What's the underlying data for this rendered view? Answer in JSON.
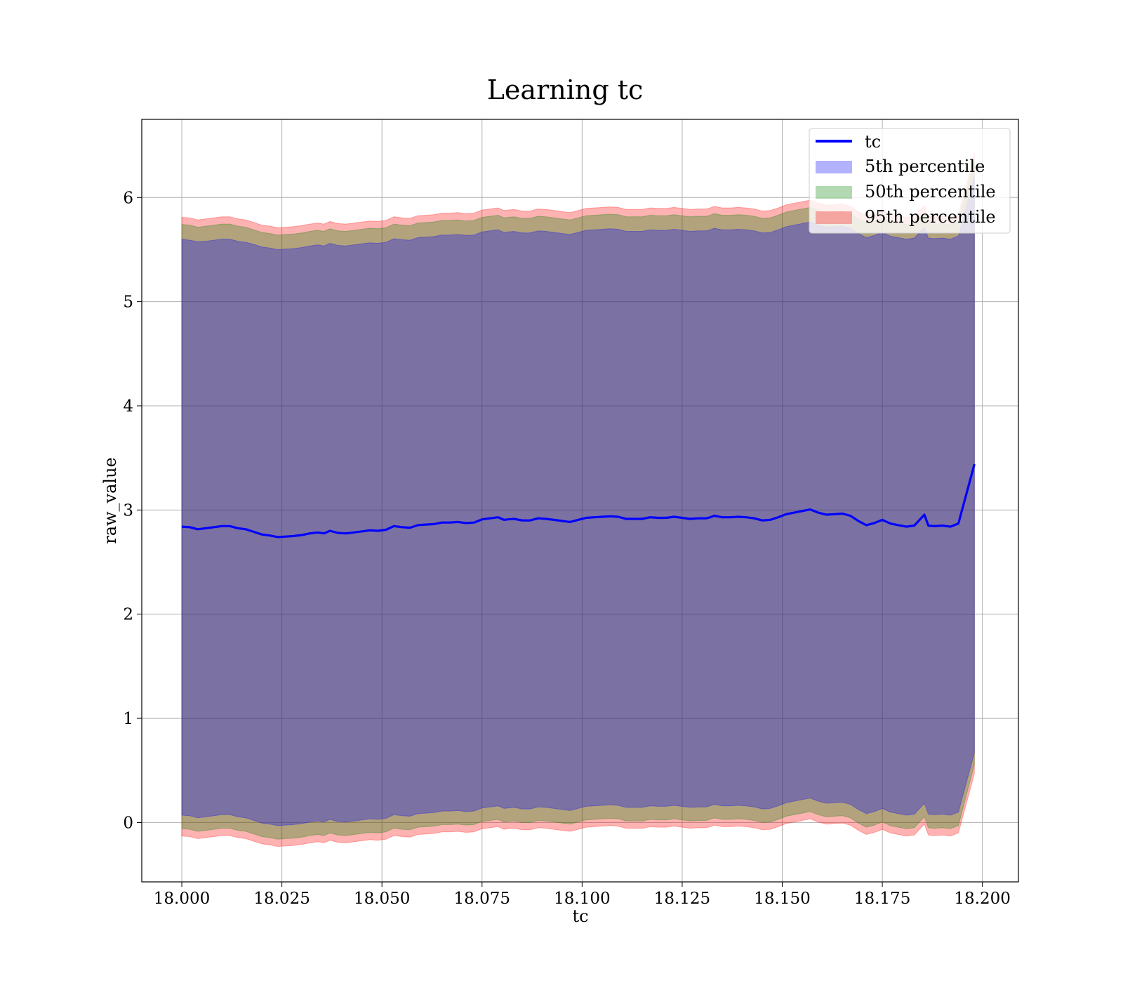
{
  "chart_data": {
    "type": "area",
    "title": "Learning tc",
    "xlabel": "tc",
    "ylabel": "raw_value",
    "xlim": [
      17.99,
      18.209
    ],
    "ylim": [
      -0.57,
      6.75
    ],
    "x_ticks": [
      18.0,
      18.025,
      18.05,
      18.075,
      18.1,
      18.125,
      18.15,
      18.175,
      18.2
    ],
    "x_tick_labels": [
      "18.000",
      "18.025",
      "18.050",
      "18.075",
      "18.100",
      "18.125",
      "18.150",
      "18.175",
      "18.200"
    ],
    "y_ticks": [
      0,
      1,
      2,
      3,
      4,
      5,
      6
    ],
    "y_tick_labels": [
      "0",
      "1",
      "2",
      "3",
      "4",
      "5",
      "6"
    ],
    "grid": true,
    "legend_position": "top-right",
    "x": [
      18.0,
      18.002,
      18.004,
      18.006,
      18.008,
      18.01,
      18.012,
      18.014,
      18.016,
      18.018,
      18.02,
      18.022,
      18.024,
      18.026,
      18.028,
      18.03,
      18.032,
      18.034,
      18.0355,
      18.037,
      18.039,
      18.041,
      18.043,
      18.045,
      18.047,
      18.049,
      18.051,
      18.053,
      18.055,
      18.057,
      18.059,
      18.061,
      18.063,
      18.065,
      18.067,
      18.069,
      18.071,
      18.073,
      18.075,
      18.077,
      18.079,
      18.0805,
      18.0815,
      18.083,
      18.085,
      18.087,
      18.089,
      18.091,
      18.093,
      18.095,
      18.097,
      18.099,
      18.101,
      18.103,
      18.105,
      18.107,
      18.109,
      18.111,
      18.113,
      18.115,
      18.117,
      18.119,
      18.121,
      18.123,
      18.125,
      18.127,
      18.129,
      18.131,
      18.132,
      18.133,
      18.135,
      18.137,
      18.139,
      18.141,
      18.143,
      18.145,
      18.147,
      18.149,
      18.151,
      18.153,
      18.155,
      18.157,
      18.159,
      18.161,
      18.163,
      18.165,
      18.167,
      18.169,
      18.171,
      18.173,
      18.175,
      18.177,
      18.179,
      18.181,
      18.183,
      18.1855,
      18.1865,
      18.188,
      18.19,
      18.192,
      18.194,
      18.198
    ],
    "series": [
      {
        "name": "tc",
        "color": "#0000ff",
        "values": [
          2.84,
          2.835,
          2.815,
          2.825,
          2.835,
          2.845,
          2.845,
          2.825,
          2.815,
          2.79,
          2.765,
          2.755,
          2.74,
          2.745,
          2.75,
          2.76,
          2.775,
          2.785,
          2.775,
          2.8,
          2.78,
          2.775,
          2.785,
          2.795,
          2.805,
          2.8,
          2.81,
          2.845,
          2.835,
          2.83,
          2.855,
          2.86,
          2.865,
          2.88,
          2.88,
          2.885,
          2.875,
          2.88,
          2.91,
          2.92,
          2.93,
          2.905,
          2.91,
          2.915,
          2.9,
          2.9,
          2.92,
          2.915,
          2.905,
          2.895,
          2.885,
          2.905,
          2.925,
          2.93,
          2.935,
          2.94,
          2.935,
          2.915,
          2.915,
          2.915,
          2.93,
          2.925,
          2.925,
          2.935,
          2.925,
          2.915,
          2.92,
          2.92,
          2.93,
          2.945,
          2.93,
          2.93,
          2.935,
          2.93,
          2.92,
          2.9,
          2.905,
          2.93,
          2.96,
          2.975,
          2.99,
          3.005,
          2.975,
          2.955,
          2.96,
          2.965,
          2.945,
          2.895,
          2.855,
          2.875,
          2.905,
          2.87,
          2.855,
          2.84,
          2.85,
          2.955,
          2.85,
          2.845,
          2.85,
          2.84,
          2.87,
          3.44
        ]
      },
      {
        "name": "5th percentile",
        "color": "#0000ff",
        "upper": [
          5.6,
          5.59,
          5.575,
          5.58,
          5.59,
          5.6,
          5.6,
          5.58,
          5.57,
          5.55,
          5.525,
          5.515,
          5.5,
          5.505,
          5.51,
          5.52,
          5.535,
          5.545,
          5.535,
          5.56,
          5.54,
          5.535,
          5.545,
          5.555,
          5.565,
          5.56,
          5.57,
          5.605,
          5.595,
          5.59,
          5.615,
          5.62,
          5.625,
          5.64,
          5.64,
          5.645,
          5.635,
          5.64,
          5.67,
          5.68,
          5.69,
          5.665,
          5.67,
          5.675,
          5.66,
          5.66,
          5.68,
          5.675,
          5.665,
          5.655,
          5.645,
          5.665,
          5.685,
          5.69,
          5.695,
          5.7,
          5.695,
          5.675,
          5.675,
          5.675,
          5.69,
          5.685,
          5.685,
          5.695,
          5.685,
          5.675,
          5.68,
          5.68,
          5.69,
          5.705,
          5.69,
          5.69,
          5.695,
          5.69,
          5.68,
          5.66,
          5.665,
          5.69,
          5.72,
          5.735,
          5.75,
          5.765,
          5.735,
          5.715,
          5.72,
          5.725,
          5.705,
          5.655,
          5.615,
          5.635,
          5.665,
          5.63,
          5.615,
          5.6,
          5.61,
          5.715,
          5.61,
          5.605,
          5.61,
          5.6,
          5.63,
          6.2
        ],
        "lower": [
          0.07,
          0.065,
          0.045,
          0.055,
          0.065,
          0.075,
          0.075,
          0.055,
          0.045,
          0.02,
          -0.005,
          -0.015,
          -0.03,
          -0.025,
          -0.02,
          -0.01,
          0.005,
          0.015,
          0.005,
          0.03,
          0.01,
          0.005,
          0.015,
          0.025,
          0.035,
          0.03,
          0.04,
          0.075,
          0.065,
          0.06,
          0.085,
          0.09,
          0.095,
          0.11,
          0.11,
          0.115,
          0.105,
          0.11,
          0.14,
          0.15,
          0.16,
          0.135,
          0.14,
          0.145,
          0.13,
          0.13,
          0.15,
          0.145,
          0.135,
          0.125,
          0.115,
          0.135,
          0.155,
          0.16,
          0.165,
          0.17,
          0.165,
          0.145,
          0.145,
          0.145,
          0.16,
          0.155,
          0.155,
          0.165,
          0.155,
          0.145,
          0.15,
          0.15,
          0.16,
          0.175,
          0.16,
          0.16,
          0.165,
          0.16,
          0.15,
          0.13,
          0.135,
          0.16,
          0.19,
          0.205,
          0.22,
          0.235,
          0.205,
          0.185,
          0.19,
          0.195,
          0.175,
          0.125,
          0.085,
          0.105,
          0.135,
          0.1,
          0.085,
          0.07,
          0.08,
          0.185,
          0.08,
          0.075,
          0.08,
          0.07,
          0.1,
          0.67
        ]
      },
      {
        "name": "50th percentile",
        "color": "#008000",
        "upper": [
          5.74,
          5.735,
          5.715,
          5.725,
          5.735,
          5.745,
          5.745,
          5.725,
          5.715,
          5.69,
          5.665,
          5.655,
          5.64,
          5.645,
          5.65,
          5.66,
          5.675,
          5.685,
          5.675,
          5.7,
          5.68,
          5.675,
          5.685,
          5.695,
          5.705,
          5.7,
          5.71,
          5.745,
          5.735,
          5.73,
          5.755,
          5.76,
          5.765,
          5.78,
          5.78,
          5.785,
          5.775,
          5.78,
          5.81,
          5.82,
          5.83,
          5.805,
          5.81,
          5.815,
          5.8,
          5.8,
          5.82,
          5.815,
          5.805,
          5.795,
          5.785,
          5.805,
          5.825,
          5.83,
          5.835,
          5.84,
          5.835,
          5.815,
          5.815,
          5.815,
          5.83,
          5.825,
          5.825,
          5.835,
          5.825,
          5.815,
          5.82,
          5.82,
          5.83,
          5.845,
          5.83,
          5.83,
          5.835,
          5.83,
          5.82,
          5.8,
          5.805,
          5.83,
          5.86,
          5.875,
          5.89,
          5.905,
          5.875,
          5.855,
          5.86,
          5.865,
          5.845,
          5.795,
          5.755,
          5.775,
          5.805,
          5.77,
          5.755,
          5.74,
          5.75,
          5.855,
          5.75,
          5.745,
          5.75,
          5.74,
          5.77,
          6.34
        ],
        "lower": [
          -0.06,
          -0.065,
          -0.085,
          -0.075,
          -0.065,
          -0.055,
          -0.055,
          -0.075,
          -0.085,
          -0.11,
          -0.135,
          -0.145,
          -0.16,
          -0.155,
          -0.15,
          -0.14,
          -0.125,
          -0.115,
          -0.125,
          -0.1,
          -0.12,
          -0.125,
          -0.115,
          -0.105,
          -0.095,
          -0.1,
          -0.09,
          -0.055,
          -0.065,
          -0.07,
          -0.045,
          -0.04,
          -0.035,
          -0.02,
          -0.02,
          -0.015,
          -0.025,
          -0.02,
          0.01,
          0.02,
          0.03,
          0.005,
          0.01,
          0.015,
          0.0,
          0.0,
          0.02,
          0.015,
          0.005,
          -0.005,
          -0.015,
          0.005,
          0.025,
          0.03,
          0.035,
          0.04,
          0.035,
          0.015,
          0.015,
          0.015,
          0.03,
          0.025,
          0.025,
          0.035,
          0.025,
          0.015,
          0.02,
          0.02,
          0.03,
          0.045,
          0.03,
          0.03,
          0.035,
          0.03,
          0.02,
          0.0,
          0.005,
          0.03,
          0.06,
          0.075,
          0.09,
          0.105,
          0.075,
          0.055,
          0.06,
          0.065,
          0.045,
          -0.005,
          -0.045,
          -0.025,
          0.005,
          -0.03,
          -0.045,
          -0.06,
          -0.05,
          0.055,
          -0.05,
          -0.055,
          -0.05,
          -0.06,
          -0.03,
          0.56
        ]
      },
      {
        "name": "95th percentile",
        "color": "#ff0000",
        "upper": [
          5.81,
          5.805,
          5.785,
          5.795,
          5.805,
          5.815,
          5.815,
          5.795,
          5.785,
          5.76,
          5.735,
          5.725,
          5.71,
          5.715,
          5.72,
          5.73,
          5.745,
          5.755,
          5.745,
          5.77,
          5.75,
          5.745,
          5.755,
          5.765,
          5.775,
          5.77,
          5.78,
          5.815,
          5.805,
          5.8,
          5.825,
          5.83,
          5.835,
          5.85,
          5.85,
          5.855,
          5.845,
          5.85,
          5.88,
          5.89,
          5.9,
          5.875,
          5.88,
          5.885,
          5.87,
          5.87,
          5.89,
          5.885,
          5.875,
          5.865,
          5.855,
          5.875,
          5.895,
          5.9,
          5.905,
          5.91,
          5.905,
          5.885,
          5.885,
          5.885,
          5.9,
          5.895,
          5.895,
          5.905,
          5.895,
          5.885,
          5.89,
          5.89,
          5.9,
          5.915,
          5.9,
          5.9,
          5.905,
          5.9,
          5.89,
          5.87,
          5.875,
          5.9,
          5.93,
          5.945,
          5.96,
          5.975,
          5.945,
          5.925,
          5.93,
          5.935,
          5.915,
          5.865,
          5.825,
          5.845,
          5.875,
          5.84,
          5.825,
          5.81,
          5.82,
          5.925,
          5.82,
          5.815,
          5.82,
          5.81,
          5.84,
          6.41
        ],
        "lower": [
          -0.13,
          -0.135,
          -0.155,
          -0.145,
          -0.135,
          -0.125,
          -0.125,
          -0.145,
          -0.155,
          -0.18,
          -0.205,
          -0.215,
          -0.23,
          -0.225,
          -0.22,
          -0.21,
          -0.195,
          -0.185,
          -0.195,
          -0.17,
          -0.19,
          -0.195,
          -0.185,
          -0.175,
          -0.165,
          -0.17,
          -0.16,
          -0.125,
          -0.135,
          -0.14,
          -0.115,
          -0.11,
          -0.105,
          -0.09,
          -0.09,
          -0.085,
          -0.095,
          -0.09,
          -0.06,
          -0.05,
          -0.04,
          -0.065,
          -0.06,
          -0.055,
          -0.07,
          -0.07,
          -0.05,
          -0.055,
          -0.065,
          -0.075,
          -0.085,
          -0.065,
          -0.045,
          -0.04,
          -0.035,
          -0.03,
          -0.035,
          -0.055,
          -0.055,
          -0.055,
          -0.04,
          -0.045,
          -0.045,
          -0.035,
          -0.045,
          -0.055,
          -0.05,
          -0.05,
          -0.04,
          -0.025,
          -0.04,
          -0.04,
          -0.035,
          -0.04,
          -0.05,
          -0.07,
          -0.065,
          -0.04,
          -0.01,
          0.005,
          0.02,
          0.035,
          0.005,
          -0.015,
          -0.01,
          -0.005,
          -0.025,
          -0.075,
          -0.115,
          -0.095,
          -0.065,
          -0.1,
          -0.115,
          -0.13,
          -0.12,
          -0.015,
          -0.12,
          -0.125,
          -0.12,
          -0.13,
          -0.1,
          0.47
        ]
      }
    ]
  }
}
